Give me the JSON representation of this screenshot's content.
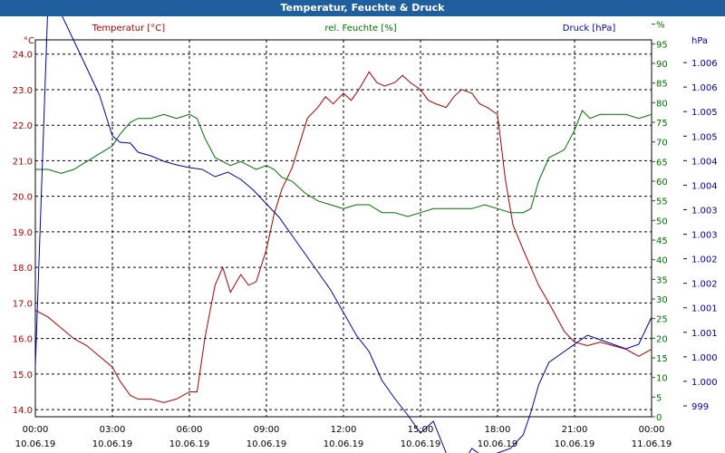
{
  "window": {
    "title": "Temperatur, Feuchte & Druck"
  },
  "chart_data": {
    "type": "line",
    "x_tick_times": [
      "00:00",
      "03:00",
      "06:00",
      "09:00",
      "12:00",
      "15:00",
      "18:00",
      "21:00",
      "00:00"
    ],
    "x_tick_dates": [
      "10.06.19",
      "10.06.19",
      "10.06.19",
      "10.06.19",
      "10.06.19",
      "10.06.19",
      "10.06.19",
      "10.06.19",
      "11.06.19"
    ],
    "grid": true,
    "colors": {
      "temp": "#b00000",
      "hum": "#007000",
      "press": "#0000b0"
    },
    "axes": {
      "temp": {
        "unit": "°C",
        "range": [
          13.8,
          24.4
        ],
        "ticks": [
          "14.0",
          "15.0",
          "16.0",
          "17.0",
          "18.0",
          "19.0",
          "20.0",
          "21.0",
          "22.0",
          "23.0",
          "24.0"
        ]
      },
      "hum": {
        "unit": "%",
        "range": [
          0,
          96
        ],
        "ticks": [
          "0",
          "5",
          "10",
          "15",
          "20",
          "25",
          "30",
          "35",
          "40",
          "45",
          "50",
          "55",
          "60",
          "65",
          "70",
          "75",
          "80",
          "85",
          "90",
          "95",
          "%"
        ]
      },
      "press": {
        "unit": "hPa",
        "ticks": [
          "999",
          "1.000",
          "1.000",
          "1.001",
          "1.001",
          "1.002",
          "1.002",
          "1.003",
          "1.003",
          "1.004",
          "1.004",
          "1.005",
          "1.005",
          "1.006",
          "1.006",
          "hPa"
        ]
      }
    },
    "series": [
      {
        "key": "temp",
        "name": "Temperatur [°C]",
        "x": [
          0,
          0.5,
          1,
          1.5,
          2,
          2.5,
          3,
          3.3,
          3.7,
          4,
          4.5,
          5,
          5.5,
          6,
          6.3,
          6.6,
          7,
          7.3,
          7.6,
          8,
          8.3,
          8.6,
          9,
          9.3,
          9.6,
          10,
          10.3,
          10.6,
          11,
          11.3,
          11.6,
          12,
          12.3,
          12.6,
          13,
          13.3,
          13.6,
          14,
          14.3,
          14.6,
          15,
          15.3,
          15.6,
          16,
          16.3,
          16.6,
          17,
          17.3,
          17.6,
          18,
          18.3,
          18.6,
          19,
          19.3,
          19.6,
          20,
          20.3,
          20.6,
          21,
          21.5,
          22,
          22.5,
          23,
          23.5,
          24
        ],
        "y": [
          16.8,
          16.6,
          16.3,
          16.0,
          15.8,
          15.5,
          15.2,
          14.8,
          14.4,
          14.3,
          14.3,
          14.2,
          14.3,
          14.5,
          14.5,
          16.0,
          17.5,
          18.0,
          17.3,
          17.8,
          17.5,
          17.6,
          18.5,
          19.5,
          20.2,
          20.8,
          21.5,
          22.2,
          22.5,
          22.8,
          22.6,
          22.9,
          22.7,
          23.0,
          23.5,
          23.2,
          23.1,
          23.2,
          23.4,
          23.2,
          23.0,
          22.7,
          22.6,
          22.5,
          22.8,
          23.0,
          22.9,
          22.6,
          22.5,
          22.3,
          20.5,
          19.2,
          18.5,
          18.0,
          17.5,
          17.0,
          16.6,
          16.2,
          15.9,
          15.8,
          15.9,
          15.8,
          15.7,
          15.5,
          15.7
        ]
      },
      {
        "key": "hum",
        "name": "rel. Feuchte [%]",
        "x": [
          0,
          0.5,
          1,
          1.5,
          2,
          2.5,
          3,
          3.3,
          3.7,
          4,
          4.5,
          5,
          5.5,
          6,
          6.3,
          6.6,
          7,
          7.3,
          7.6,
          8,
          8.3,
          8.6,
          9,
          9.3,
          9.6,
          10,
          10.5,
          11,
          11.5,
          12,
          12.5,
          13,
          13.5,
          14,
          14.5,
          15,
          15.5,
          16,
          16.5,
          17,
          17.5,
          18,
          18.5,
          19,
          19.3,
          19.6,
          20,
          20.3,
          20.6,
          21,
          21.3,
          21.6,
          22,
          22.5,
          23,
          23.5,
          24
        ],
        "y": [
          63,
          63,
          62,
          63,
          65,
          67,
          69,
          72,
          75,
          76,
          76,
          77,
          76,
          77,
          76,
          71,
          66,
          65,
          64,
          65,
          64,
          63,
          64,
          63,
          61,
          60,
          57,
          55,
          54,
          53,
          54,
          54,
          52,
          52,
          51,
          52,
          53,
          53,
          53,
          53,
          54,
          53,
          52,
          52,
          53,
          60,
          66,
          67,
          68,
          73,
          78,
          76,
          77,
          77,
          77,
          76,
          77
        ]
      },
      {
        "key": "press",
        "name": "Druck [hPa]",
        "x": [
          0,
          0.5,
          1,
          1.5,
          2,
          2.5,
          3,
          3.3,
          3.7,
          4,
          4.5,
          5,
          5.5,
          6,
          6.5,
          7,
          7.5,
          8,
          8.5,
          9,
          9.5,
          10,
          10.5,
          11,
          11.5,
          12,
          12.5,
          13,
          13.5,
          14,
          14.5,
          15,
          15.5,
          16,
          16.5,
          17,
          17.5,
          18,
          18.5,
          19,
          19.3,
          19.6,
          20,
          20.5,
          21,
          21.5,
          22,
          22.5,
          23,
          23.5,
          24
        ],
        "y": [
          45,
          455,
          435,
          405,
          375,
          345,
          300,
          293,
          292,
          282,
          278,
          272,
          268,
          265,
          263,
          255,
          260,
          252,
          240,
          225,
          210,
          190,
          170,
          150,
          130,
          105,
          80,
          62,
          30,
          10,
          -8,
          -28,
          -15,
          -50,
          -68,
          -45,
          -55,
          -50,
          -45,
          -30,
          -5,
          25,
          50,
          60,
          70,
          80,
          75,
          70,
          65,
          70,
          100
        ]
      }
    ]
  }
}
